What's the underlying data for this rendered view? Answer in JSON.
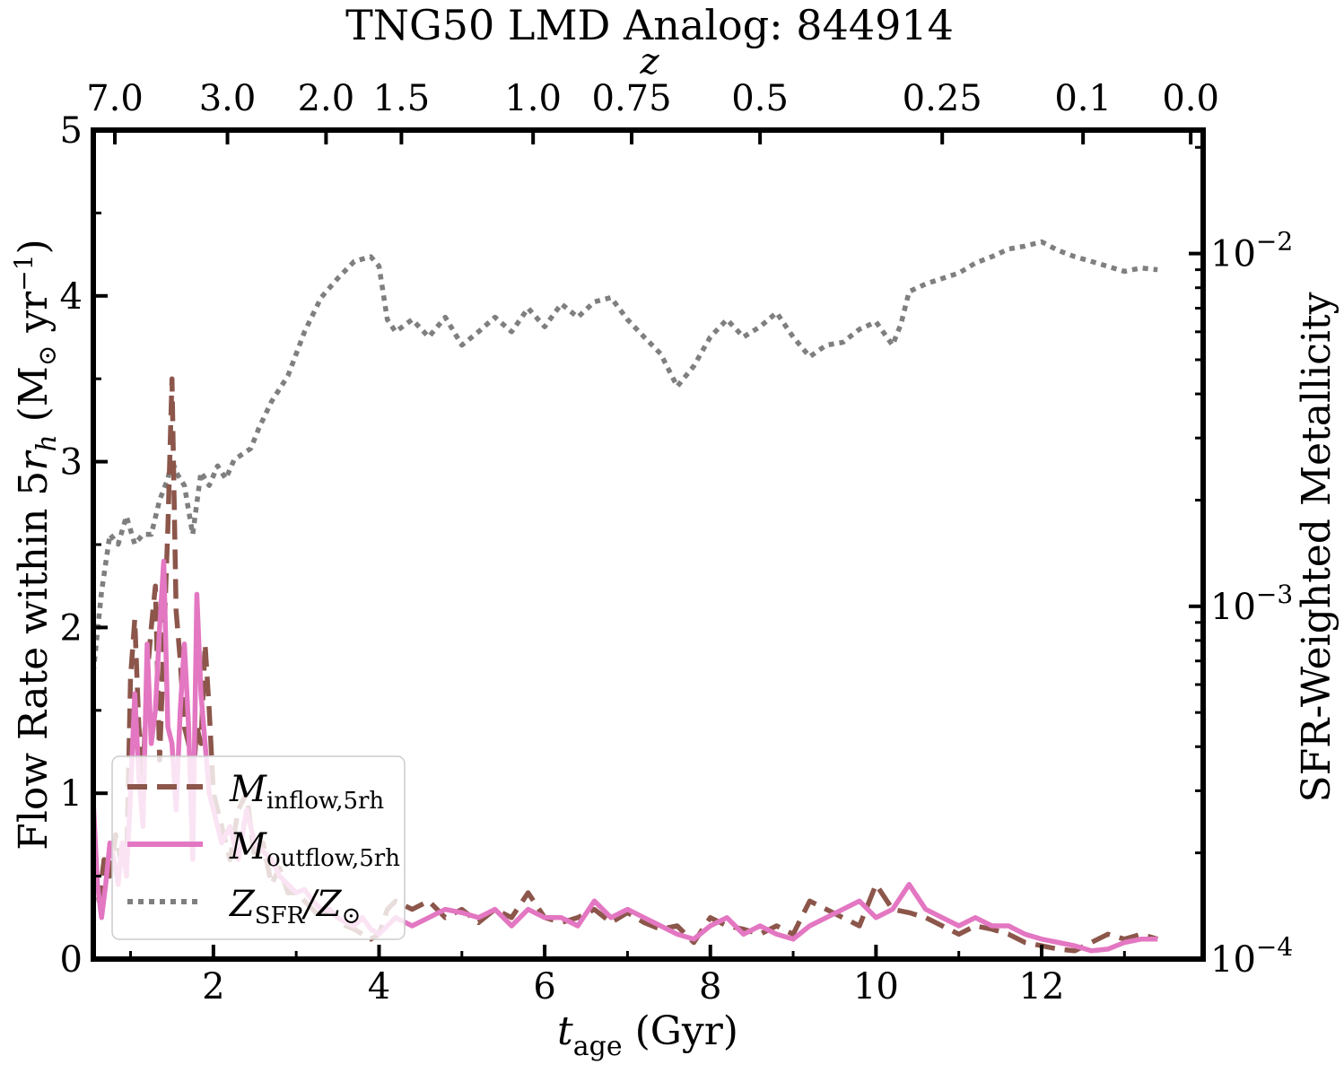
{
  "chart_data": {
    "type": "line",
    "title": "TNG50 LMD Analog: 844914",
    "xlabel": "t_age (Gyr)",
    "xlabel_main": "t",
    "xlabel_sub": "age",
    "xlabel_unit": " (Gyr)",
    "ylabel_left": "Flow Rate within 5r_h (M⊙ yr⁻¹)",
    "ylabel_left_parts": {
      "a": "Flow Rate within 5",
      "b": "r",
      "c": "h",
      "d": " (M",
      "e": "⊙",
      "f": " yr",
      "g": "−1",
      "h": ")"
    },
    "ylabel_right": "SFR-Weighted Metallicity",
    "top_axis_label": "z",
    "xlim": [
      0.55,
      13.95
    ],
    "ylim_left": [
      0,
      5
    ],
    "ylim_right_log": [
      -4,
      -1.65
    ],
    "x_ticks": [
      2,
      4,
      6,
      8,
      10,
      12
    ],
    "x_tick_labels": [
      "2",
      "4",
      "6",
      "8",
      "10",
      "12"
    ],
    "y_ticks_left": [
      0,
      1,
      2,
      3,
      4,
      5
    ],
    "y_tick_labels_left": [
      "0",
      "1",
      "2",
      "3",
      "4",
      "5"
    ],
    "y_ticks_right": [
      {
        "log": -4,
        "base": "10",
        "exp": "−4"
      },
      {
        "log": -3,
        "base": "10",
        "exp": "−3"
      },
      {
        "log": -2,
        "base": "10",
        "exp": "−2"
      }
    ],
    "top_ticks": [
      {
        "t": 0.81,
        "label": "7.0"
      },
      {
        "t": 2.17,
        "label": "3.0"
      },
      {
        "t": 3.36,
        "label": "2.0"
      },
      {
        "t": 4.27,
        "label": "1.5"
      },
      {
        "t": 5.86,
        "label": "1.0"
      },
      {
        "t": 7.05,
        "label": "0.75"
      },
      {
        "t": 8.6,
        "label": "0.5"
      },
      {
        "t": 10.8,
        "label": "0.25"
      },
      {
        "t": 12.5,
        "label": "0.1"
      },
      {
        "t": 13.8,
        "label": "0.0"
      }
    ],
    "legend_position": "lower-left",
    "series": [
      {
        "name": "M_inflow,5rh",
        "legend_main": "M",
        "legend_sub": "inflow,5rh",
        "axis": "left",
        "color": "#8c564b",
        "style": "dashed",
        "x": [
          0.55,
          0.62,
          0.68,
          0.75,
          0.82,
          0.88,
          0.95,
          1.0,
          1.05,
          1.1,
          1.15,
          1.2,
          1.25,
          1.3,
          1.35,
          1.4,
          1.45,
          1.5,
          1.55,
          1.6,
          1.65,
          1.7,
          1.75,
          1.8,
          1.85,
          1.9,
          1.95,
          2.0,
          2.1,
          2.2,
          2.3,
          2.4,
          2.5,
          2.6,
          2.7,
          2.8,
          2.9,
          3.0,
          3.1,
          3.2,
          3.3,
          3.4,
          3.5,
          3.6,
          3.7,
          3.8,
          3.9,
          4.0,
          4.1,
          4.2,
          4.4,
          4.6,
          4.8,
          5.0,
          5.2,
          5.4,
          5.6,
          5.8,
          6.0,
          6.2,
          6.4,
          6.6,
          6.8,
          7.0,
          7.2,
          7.4,
          7.6,
          7.8,
          8.0,
          8.2,
          8.4,
          8.6,
          8.8,
          9.0,
          9.2,
          9.4,
          9.6,
          9.8,
          10.0,
          10.2,
          10.4,
          10.6,
          10.8,
          11.0,
          11.2,
          11.4,
          11.6,
          11.8,
          12.0,
          12.2,
          12.4,
          12.6,
          12.8,
          13.0,
          13.2,
          13.4
        ],
        "values": [
          0.55,
          0.35,
          0.6,
          0.5,
          0.75,
          0.6,
          0.5,
          1.7,
          2.05,
          1.4,
          1.1,
          1.7,
          2.0,
          2.25,
          1.2,
          1.9,
          2.6,
          3.5,
          2.1,
          1.8,
          1.4,
          1.3,
          1.05,
          1.4,
          1.3,
          1.9,
          1.5,
          1.0,
          0.8,
          0.6,
          0.9,
          1.0,
          0.6,
          0.7,
          0.45,
          0.55,
          0.4,
          0.4,
          0.35,
          0.3,
          0.25,
          0.3,
          0.25,
          0.2,
          0.18,
          0.15,
          0.12,
          0.15,
          0.3,
          0.35,
          0.3,
          0.35,
          0.25,
          0.3,
          0.22,
          0.3,
          0.25,
          0.4,
          0.25,
          0.22,
          0.25,
          0.3,
          0.22,
          0.28,
          0.22,
          0.18,
          0.2,
          0.1,
          0.25,
          0.2,
          0.18,
          0.15,
          0.2,
          0.15,
          0.35,
          0.3,
          0.25,
          0.2,
          0.45,
          0.3,
          0.28,
          0.25,
          0.2,
          0.15,
          0.2,
          0.18,
          0.15,
          0.1,
          0.08,
          0.06,
          0.05,
          0.1,
          0.15,
          0.12,
          0.15,
          0.12
        ]
      },
      {
        "name": "M_outflow,5rh",
        "legend_main": "M",
        "legend_sub": "outflow,5rh",
        "axis": "left",
        "color": "#e377c2",
        "style": "solid",
        "x": [
          0.55,
          0.6,
          0.65,
          0.7,
          0.75,
          0.8,
          0.85,
          0.9,
          0.95,
          1.0,
          1.05,
          1.1,
          1.15,
          1.2,
          1.25,
          1.3,
          1.35,
          1.4,
          1.45,
          1.5,
          1.55,
          1.6,
          1.65,
          1.7,
          1.75,
          1.8,
          1.85,
          1.9,
          1.95,
          2.0,
          2.1,
          2.2,
          2.3,
          2.4,
          2.5,
          2.6,
          2.7,
          2.8,
          2.9,
          3.0,
          3.1,
          3.2,
          3.3,
          3.4,
          3.5,
          3.6,
          3.7,
          3.8,
          3.9,
          4.0,
          4.1,
          4.2,
          4.4,
          4.6,
          4.8,
          5.0,
          5.2,
          5.4,
          5.6,
          5.8,
          6.0,
          6.2,
          6.4,
          6.6,
          6.8,
          7.0,
          7.2,
          7.4,
          7.6,
          7.8,
          8.0,
          8.2,
          8.4,
          8.6,
          8.8,
          9.0,
          9.2,
          9.4,
          9.6,
          9.8,
          10.0,
          10.2,
          10.4,
          10.6,
          10.8,
          11.0,
          11.2,
          11.4,
          11.6,
          11.8,
          12.0,
          12.2,
          12.4,
          12.6,
          12.8,
          13.0,
          13.2,
          13.4
        ],
        "values": [
          0.95,
          0.45,
          0.25,
          0.45,
          0.7,
          0.6,
          0.45,
          0.7,
          0.5,
          1.0,
          1.6,
          1.1,
          0.8,
          1.9,
          1.3,
          1.5,
          2.0,
          2.4,
          1.4,
          1.3,
          0.9,
          1.5,
          1.9,
          1.4,
          0.6,
          2.2,
          1.6,
          1.3,
          1.0,
          0.9,
          0.7,
          0.8,
          0.6,
          0.9,
          0.7,
          0.65,
          0.6,
          0.5,
          0.45,
          0.4,
          0.42,
          0.35,
          0.3,
          0.3,
          0.25,
          0.22,
          0.2,
          0.25,
          0.18,
          0.15,
          0.2,
          0.25,
          0.2,
          0.25,
          0.3,
          0.28,
          0.25,
          0.3,
          0.2,
          0.3,
          0.25,
          0.25,
          0.2,
          0.35,
          0.25,
          0.3,
          0.25,
          0.2,
          0.15,
          0.12,
          0.2,
          0.25,
          0.15,
          0.2,
          0.15,
          0.12,
          0.2,
          0.25,
          0.3,
          0.35,
          0.25,
          0.3,
          0.45,
          0.3,
          0.25,
          0.2,
          0.25,
          0.2,
          0.2,
          0.15,
          0.12,
          0.1,
          0.08,
          0.05,
          0.06,
          0.1,
          0.12,
          0.12
        ]
      },
      {
        "name": "Z_SFR/Z⊙",
        "legend_main": "Z",
        "legend_sub": "SFR",
        "legend_slash": "/Z",
        "legend_sun": "⊙",
        "axis": "right",
        "color": "#7f7f7f",
        "style": "dotted",
        "x": [
          0.55,
          0.65,
          0.75,
          0.85,
          0.95,
          1.05,
          1.15,
          1.25,
          1.35,
          1.45,
          1.5,
          1.55,
          1.65,
          1.75,
          1.85,
          1.95,
          2.05,
          2.15,
          2.25,
          2.35,
          2.45,
          2.55,
          2.7,
          2.9,
          3.1,
          3.3,
          3.5,
          3.7,
          3.9,
          4.0,
          4.1,
          4.2,
          4.4,
          4.6,
          4.8,
          5.0,
          5.2,
          5.4,
          5.6,
          5.8,
          6.0,
          6.2,
          6.4,
          6.6,
          6.8,
          7.0,
          7.2,
          7.4,
          7.6,
          7.8,
          8.0,
          8.2,
          8.4,
          8.6,
          8.8,
          9.0,
          9.2,
          9.4,
          9.6,
          9.8,
          10.0,
          10.2,
          10.3,
          10.4,
          10.6,
          10.8,
          11.0,
          11.2,
          11.4,
          11.6,
          11.8,
          12.0,
          12.2,
          12.4,
          12.6,
          12.8,
          13.0,
          13.2,
          13.4
        ],
        "values": [
          0.00065,
          0.0011,
          0.0016,
          0.0015,
          0.0018,
          0.0015,
          0.0016,
          0.0016,
          0.002,
          0.0023,
          0.0026,
          0.0024,
          0.0022,
          0.0016,
          0.0024,
          0.0022,
          0.0025,
          0.0023,
          0.0026,
          0.0027,
          0.0028,
          0.0032,
          0.0038,
          0.0045,
          0.006,
          0.0075,
          0.0085,
          0.0095,
          0.0098,
          0.0092,
          0.0065,
          0.006,
          0.0065,
          0.0058,
          0.0066,
          0.0055,
          0.006,
          0.0066,
          0.006,
          0.007,
          0.0062,
          0.0072,
          0.0066,
          0.0073,
          0.0075,
          0.0065,
          0.0058,
          0.0052,
          0.0042,
          0.0048,
          0.0058,
          0.0065,
          0.0058,
          0.0062,
          0.0068,
          0.0058,
          0.0051,
          0.0055,
          0.0056,
          0.0061,
          0.0064,
          0.0055,
          0.0063,
          0.0078,
          0.0082,
          0.0085,
          0.0088,
          0.0094,
          0.0098,
          0.0103,
          0.0105,
          0.0108,
          0.0102,
          0.0098,
          0.0095,
          0.0092,
          0.0089,
          0.0091,
          0.009
        ]
      }
    ]
  }
}
